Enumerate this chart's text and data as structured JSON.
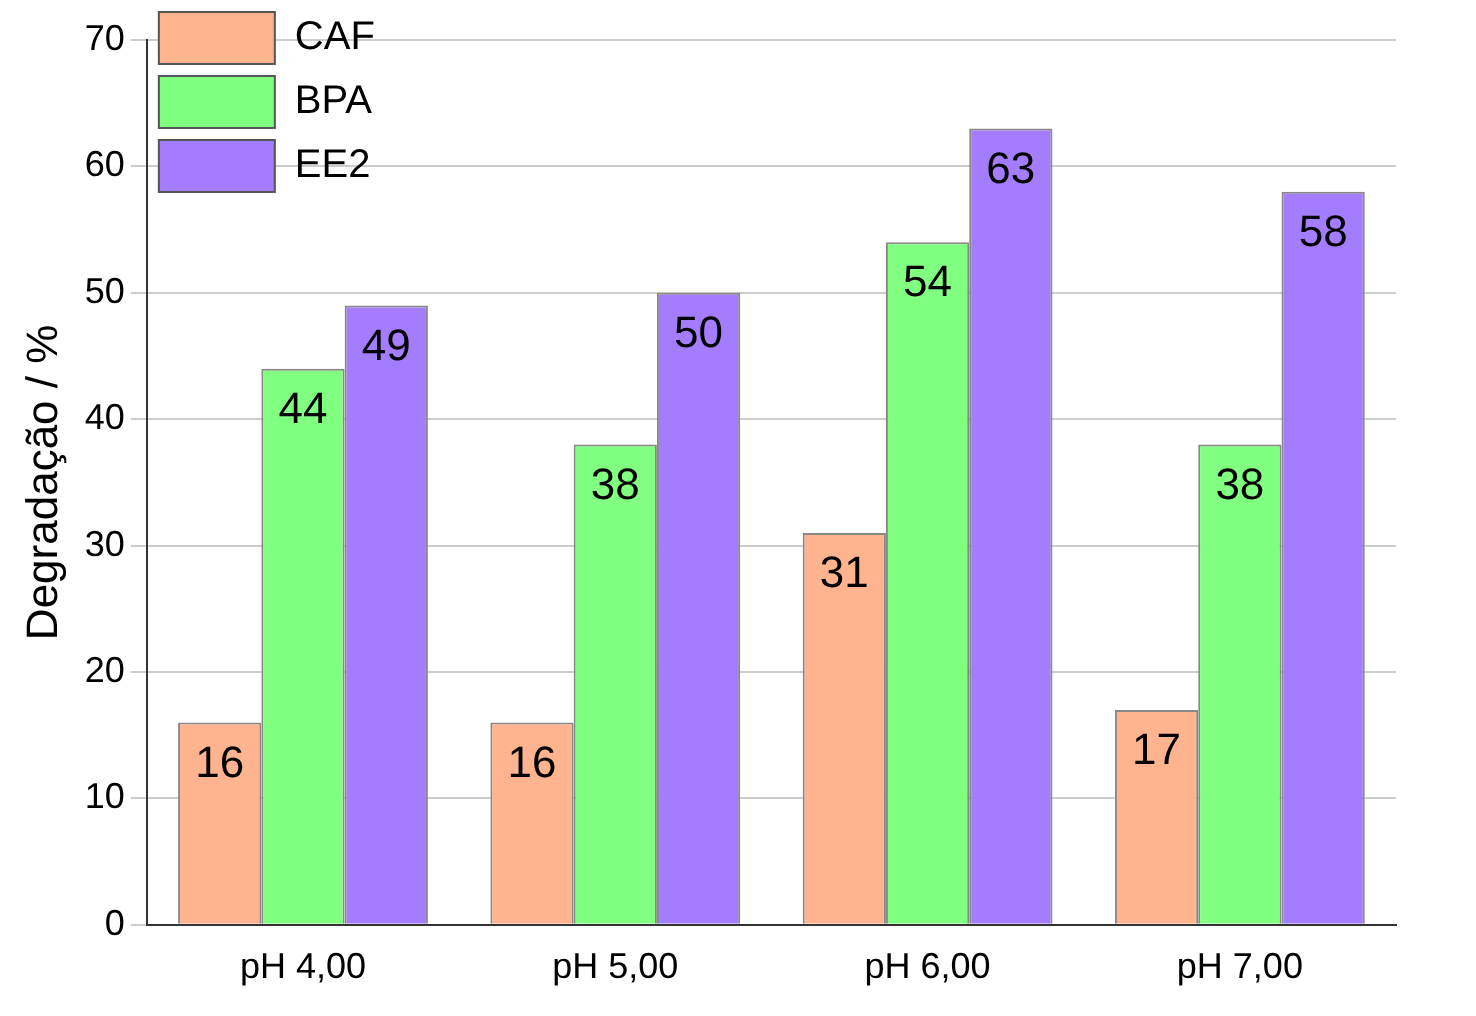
{
  "chart_data": {
    "type": "bar",
    "ylabel": "Degradação / %",
    "categories": [
      "pH 4,00",
      "pH 5,00",
      "pH 6,00",
      "pH 7,00"
    ],
    "series": [
      {
        "name": "CAF",
        "color": "#ffb38f",
        "values": [
          16,
          16,
          31,
          17
        ]
      },
      {
        "name": "BPA",
        "color": "#80ff80",
        "values": [
          44,
          38,
          54,
          38
        ]
      },
      {
        "name": "EE2",
        "color": "#a47dff",
        "values": [
          49,
          50,
          63,
          58
        ]
      }
    ],
    "ylim": [
      0,
      70
    ],
    "yticks": [
      0,
      10,
      20,
      30,
      40,
      50,
      60,
      70
    ],
    "grid": "y",
    "legend": "top left",
    "data_labels": true
  }
}
